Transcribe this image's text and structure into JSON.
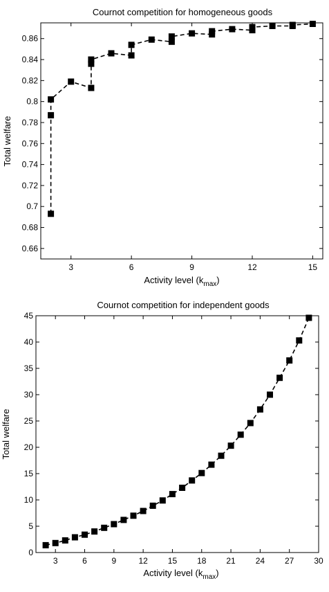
{
  "chart_data": [
    {
      "type": "line",
      "title": "Cournot competition for homogeneous goods",
      "xlabel": "Activity level (k",
      "xlabel_sub": "max",
      "xlabel_end": ")",
      "ylabel": "Total welfare",
      "xlim": [
        1.5,
        15.5
      ],
      "ylim": [
        0.65,
        0.875
      ],
      "xticks": [
        3,
        6,
        9,
        12,
        15
      ],
      "xtick_labels": [
        "3",
        "6",
        "9",
        "12",
        "15"
      ],
      "yticks": [
        0.66,
        0.68,
        0.7,
        0.72,
        0.74,
        0.76,
        0.78,
        0.8,
        0.82,
        0.84,
        0.86
      ],
      "ytick_labels": [
        "0.66",
        "0.68",
        "0.7",
        "0.72",
        "0.74",
        "0.76",
        "0.78",
        "0.8",
        "0.82",
        "0.84",
        "0.86"
      ],
      "grid": false,
      "line_style": "dashed",
      "marker": "square",
      "color": "#000000",
      "series": [
        {
          "points": [
            [
              2,
              0.693
            ],
            [
              2,
              0.787
            ],
            [
              2,
              0.802
            ],
            [
              3,
              0.819
            ],
            [
              4,
              0.813
            ],
            [
              4,
              0.836
            ],
            [
              4,
              0.84
            ],
            [
              5,
              0.846
            ],
            [
              6,
              0.844
            ],
            [
              6,
              0.854
            ],
            [
              7,
              0.859
            ],
            [
              8,
              0.857
            ],
            [
              8,
              0.862
            ],
            [
              9,
              0.865
            ],
            [
              10,
              0.864
            ],
            [
              10,
              0.867
            ],
            [
              11,
              0.869
            ],
            [
              12,
              0.868
            ],
            [
              12,
              0.871
            ],
            [
              13,
              0.872
            ],
            [
              14,
              0.872
            ],
            [
              14,
              0.873
            ],
            [
              15,
              0.874
            ]
          ]
        }
      ]
    },
    {
      "type": "line",
      "title": "Cournot competition for independent goods",
      "xlabel": "Activity level (k",
      "xlabel_sub": "max",
      "xlabel_end": ")",
      "ylabel": "Total welfare",
      "xlim": [
        1,
        30
      ],
      "ylim": [
        0,
        45
      ],
      "xticks": [
        3,
        6,
        9,
        12,
        15,
        18,
        21,
        24,
        27,
        30
      ],
      "xtick_labels": [
        "3",
        "6",
        "9",
        "12",
        "15",
        "18",
        "21",
        "24",
        "27",
        "30"
      ],
      "yticks": [
        0,
        5,
        10,
        15,
        20,
        25,
        30,
        35,
        40,
        45
      ],
      "ytick_labels": [
        "0",
        "5",
        "10",
        "15",
        "20",
        "25",
        "30",
        "35",
        "40",
        "45"
      ],
      "grid": false,
      "line_style": "dashed",
      "marker": "square",
      "color": "#000000",
      "series": [
        {
          "points": [
            [
              2,
              1.4
            ],
            [
              3,
              1.8
            ],
            [
              4,
              2.3
            ],
            [
              5,
              2.9
            ],
            [
              6,
              3.4
            ],
            [
              7,
              4.0
            ],
            [
              8,
              4.7
            ],
            [
              9,
              5.4
            ],
            [
              10,
              6.2
            ],
            [
              11,
              7.0
            ],
            [
              12,
              7.9
            ],
            [
              13,
              8.9
            ],
            [
              14,
              9.9
            ],
            [
              15,
              11.1
            ],
            [
              16,
              12.3
            ],
            [
              17,
              13.7
            ],
            [
              18,
              15.1
            ],
            [
              19,
              16.7
            ],
            [
              20,
              18.4
            ],
            [
              21,
              20.3
            ],
            [
              22,
              22.4
            ],
            [
              23,
              24.6
            ],
            [
              24,
              27.2
            ],
            [
              25,
              30.0
            ],
            [
              26,
              33.2
            ],
            [
              27,
              36.5
            ],
            [
              28,
              40.3
            ],
            [
              29,
              44.6
            ]
          ]
        }
      ]
    }
  ]
}
